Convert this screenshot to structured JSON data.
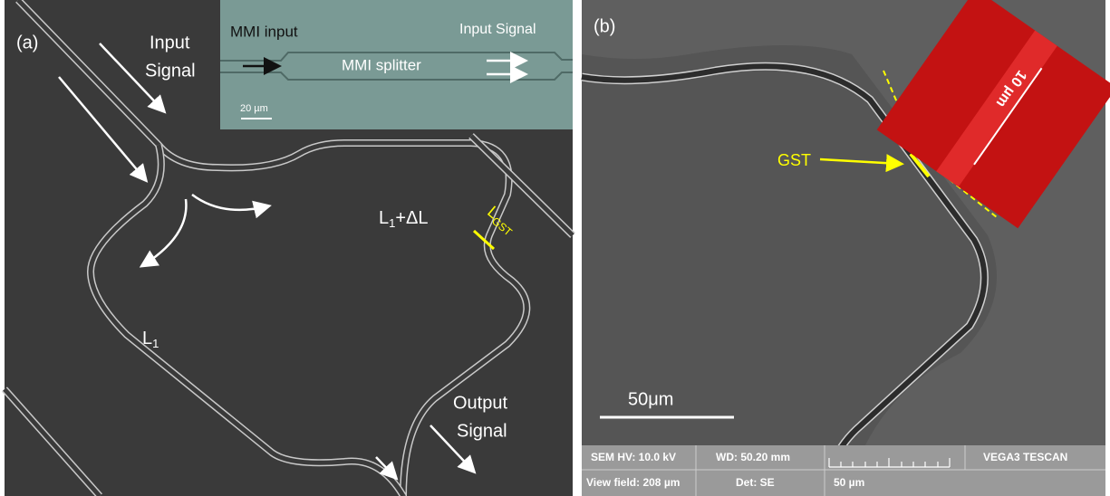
{
  "panel_a": {
    "label": "(a)",
    "input_signal": [
      "Input",
      "Signal"
    ],
    "inset": {
      "mmi_input": "MMI input",
      "input_signal": "Input Signal",
      "mmi_splitter": "MMI splitter",
      "scale": "20 µm"
    },
    "arm_long": {
      "base": "L",
      "sub": "1",
      "rest": "+ΔL"
    },
    "gst": {
      "base": "L",
      "sub": "GST"
    },
    "arm_short": {
      "base": "L",
      "sub": "1"
    },
    "output_signal": [
      "Output",
      "Signal"
    ]
  },
  "panel_b": {
    "label": "(b)",
    "zoom_scale": "10 µm",
    "gst": "GST",
    "scale": "50μm",
    "info_bar": {
      "hv": "SEM HV: 10.0 kV",
      "wd": "WD: 50.20 mm",
      "brand": "VEGA3 TESCAN",
      "view_field": "View field: 208 µm",
      "det": "Det: SE",
      "bar_scale": "50 µm"
    }
  }
}
